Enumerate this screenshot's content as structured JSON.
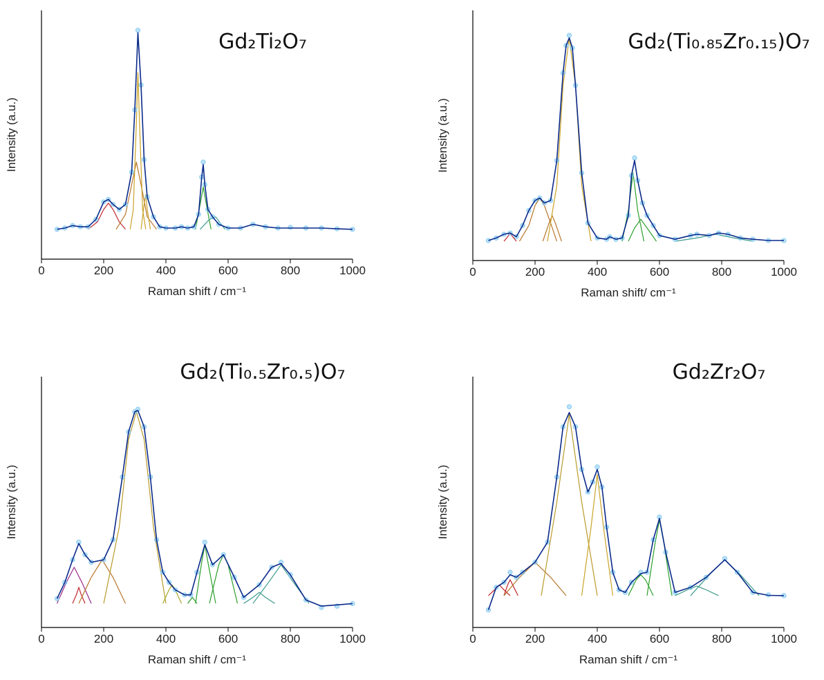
{
  "chart_data": [
    {
      "type": "line",
      "title": "Gd₂Ti₂O₇",
      "xlabel": "Raman shift / cm⁻¹",
      "ylabel": "Intensity (a.u.)",
      "xlim": [
        0,
        1000
      ],
      "xticks": [
        0,
        200,
        400,
        600,
        800,
        1000
      ],
      "ylim": [
        0,
        100
      ],
      "x": [
        50,
        75,
        100,
        125,
        150,
        175,
        200,
        215,
        230,
        250,
        270,
        290,
        300,
        310,
        320,
        330,
        340,
        360,
        380,
        400,
        430,
        450,
        470,
        490,
        505,
        515,
        520,
        525,
        535,
        550,
        570,
        600,
        640,
        680,
        720,
        760,
        800,
        850,
        900,
        950,
        1000
      ],
      "series": [
        {
          "color": "#7fc8f0",
          "style": "markers",
          "values": [
            12,
            12.5,
            13.5,
            13,
            13,
            16,
            23,
            24,
            22,
            20,
            22,
            35,
            60,
            92,
            70,
            40,
            25,
            17,
            13,
            12.5,
            12.5,
            13,
            12.5,
            13,
            18,
            33,
            39,
            30,
            20,
            17,
            14,
            12.5,
            12.5,
            14,
            13,
            12.5,
            12.8,
            12.5,
            12.5,
            12.2,
            12
          ]
        },
        {
          "color": "#0a2a8a",
          "style": "line",
          "values": [
            12,
            12.5,
            13.5,
            13,
            13,
            16,
            23,
            24,
            22,
            20,
            22,
            35,
            60,
            91,
            70,
            40,
            25,
            17,
            13,
            12.5,
            12.5,
            13,
            12.5,
            13,
            18,
            33,
            38,
            30,
            20,
            17,
            14,
            12.5,
            12.5,
            14,
            13,
            12.5,
            12.5,
            12.5,
            12.5,
            12.2,
            12
          ]
        },
        {
          "color": "#c0262d",
          "style": "line",
          "x": [
            150,
            180,
            200,
            215,
            230,
            250,
            270
          ],
          "values": [
            12,
            15,
            20,
            22.5,
            20,
            15,
            12
          ]
        },
        {
          "color": "#b8752a",
          "style": "line",
          "x": [
            240,
            270,
            290,
            305,
            320,
            340,
            370
          ],
          "values": [
            12,
            18,
            30,
            39,
            30,
            17,
            12
          ]
        },
        {
          "color": "#c9a227",
          "style": "line",
          "x": [
            285,
            295,
            305,
            310,
            315,
            325,
            335
          ],
          "values": [
            12,
            20,
            55,
            75,
            55,
            20,
            12
          ]
        },
        {
          "color": "#c9a227",
          "style": "line",
          "x": [
            320,
            330,
            335,
            340,
            350
          ],
          "values": [
            12,
            22,
            26,
            20,
            12
          ]
        },
        {
          "color": "#2ca02c",
          "style": "line",
          "x": [
            495,
            510,
            520,
            530,
            545
          ],
          "values": [
            12,
            22,
            29,
            22,
            12
          ]
        },
        {
          "color": "#3a9a8a",
          "style": "line",
          "x": [
            510,
            540,
            560,
            590
          ],
          "values": [
            12,
            16,
            17,
            12
          ]
        }
      ]
    },
    {
      "type": "line",
      "title": "Gd₂(Ti₀.₈₅Zr₀.₁₅)O₇",
      "xlabel": "Raman shift/ cm⁻¹",
      "ylabel": "Intensity (a.u.)",
      "xlim": [
        0,
        1000
      ],
      "xticks": [
        0,
        200,
        400,
        600,
        800,
        1000
      ],
      "ylim": [
        0,
        100
      ],
      "x": [
        50,
        75,
        100,
        120,
        140,
        160,
        180,
        200,
        215,
        230,
        250,
        270,
        290,
        300,
        310,
        320,
        330,
        350,
        370,
        400,
        430,
        440,
        460,
        480,
        500,
        510,
        520,
        530,
        545,
        560,
        580,
        600,
        650,
        700,
        720,
        760,
        790,
        820,
        860,
        900,
        950,
        1000
      ],
      "series": [
        {
          "color": "#7fc8f0",
          "style": "markers",
          "values": [
            8,
            9,
            10.5,
            11,
            9.5,
            14,
            20,
            24,
            25,
            23,
            24,
            40,
            75,
            86,
            90,
            85,
            70,
            35,
            15,
            9,
            8.5,
            9.5,
            8.5,
            9,
            18,
            34,
            41,
            32,
            23,
            18,
            14,
            10,
            8.5,
            10,
            10.5,
            10,
            11,
            10.5,
            9,
            8.5,
            8,
            8
          ]
        },
        {
          "color": "#0a2a8a",
          "style": "line",
          "values": [
            8,
            9,
            10.5,
            11,
            9.5,
            14,
            20,
            24,
            25,
            23,
            24,
            40,
            75,
            86,
            89,
            85,
            70,
            35,
            15,
            9,
            8.5,
            9.5,
            8.5,
            9,
            18,
            34,
            40,
            32,
            23,
            18,
            14,
            10,
            8.5,
            10,
            10.5,
            10,
            11,
            10.5,
            9,
            8.5,
            8,
            8
          ]
        },
        {
          "color": "#c0262d",
          "style": "line",
          "x": [
            100,
            112,
            120,
            128,
            140
          ],
          "values": [
            7.7,
            9.5,
            11,
            9.5,
            7.7
          ]
        },
        {
          "color": "#b8752a",
          "style": "line",
          "x": [
            150,
            180,
            200,
            215,
            230,
            250,
            270
          ],
          "values": [
            7.7,
            14,
            22,
            25,
            22,
            15,
            7.7
          ]
        },
        {
          "color": "#b8752a",
          "style": "line",
          "x": [
            225,
            245,
            255,
            265,
            285
          ],
          "values": [
            7.7,
            15,
            18,
            15,
            7.7
          ]
        },
        {
          "color": "#c9a227",
          "style": "line",
          "x": [
            240,
            270,
            290,
            310,
            330,
            350,
            380
          ],
          "values": [
            7.7,
            30,
            70,
            89,
            70,
            30,
            7.7
          ]
        },
        {
          "color": "#2ca02c",
          "style": "line",
          "x": [
            480,
            500,
            515,
            530,
            550
          ],
          "values": [
            7.7,
            20,
            35,
            20,
            7.7
          ]
        },
        {
          "color": "#2ca02c",
          "style": "line",
          "x": [
            500,
            520,
            540,
            560,
            590
          ],
          "values": [
            7.7,
            13,
            16.5,
            13,
            7.7
          ]
        },
        {
          "color": "#3a9a8a",
          "style": "line",
          "x": [
            650,
            720,
            780,
            840,
            900
          ],
          "values": [
            7.7,
            9,
            10.5,
            9,
            7.7
          ]
        }
      ]
    },
    {
      "type": "line",
      "title": "Gd₂(Ti₀.₅Zr₀.₅)O₇",
      "xlabel": "Raman shift / cm⁻¹",
      "ylabel": "Intensity (a.u.)",
      "xlim": [
        0,
        1000
      ],
      "xticks": [
        0,
        200,
        400,
        600,
        800,
        1000
      ],
      "ylim": [
        0,
        100
      ],
      "x": [
        50,
        75,
        100,
        120,
        140,
        160,
        200,
        230,
        260,
        280,
        300,
        310,
        330,
        350,
        370,
        390,
        410,
        430,
        460,
        480,
        500,
        525,
        550,
        585,
        620,
        650,
        700,
        740,
        770,
        800,
        850,
        900,
        950,
        1000
      ],
      "series": [
        {
          "color": "#7fc8f0",
          "style": "markers",
          "values": [
            11.5,
            18,
            27,
            34,
            29,
            26,
            27,
            35,
            60,
            78,
            86,
            87,
            80,
            60,
            35,
            22,
            18,
            15,
            13,
            13,
            22,
            34,
            25,
            29,
            20,
            12,
            17,
            24,
            26,
            21,
            11,
            8,
            8.5,
            9.5
          ]
        },
        {
          "color": "#0a2a8a",
          "style": "line",
          "values": [
            11.5,
            18,
            27,
            33.5,
            29,
            26,
            27,
            35,
            60,
            78,
            86,
            86.5,
            80,
            60,
            35,
            22,
            18,
            15,
            13,
            13,
            22,
            33,
            25,
            29,
            20,
            12,
            17,
            24,
            25.5,
            21,
            11,
            8.5,
            9,
            9.5
          ]
        },
        {
          "color": "#9b2a8a",
          "style": "line",
          "x": [
            50,
            80,
            105,
            130,
            160
          ],
          "values": [
            9.6,
            18,
            24,
            18,
            9.6
          ]
        },
        {
          "color": "#c0262d",
          "style": "line",
          "x": [
            100,
            112,
            120,
            128,
            140
          ],
          "values": [
            9.6,
            13,
            16,
            13,
            9.6
          ]
        },
        {
          "color": "#b8752a",
          "style": "line",
          "x": [
            120,
            160,
            195,
            230,
            270
          ],
          "values": [
            9.6,
            20,
            27,
            20,
            9.6
          ]
        },
        {
          "color": "#b89a2a",
          "style": "line",
          "x": [
            200,
            250,
            280,
            305,
            330,
            360,
            400
          ],
          "values": [
            9.6,
            40,
            75,
            86,
            75,
            40,
            9.6
          ]
        },
        {
          "color": "#a8a82a",
          "style": "line",
          "x": [
            390,
            410,
            420,
            430,
            450
          ],
          "values": [
            9.6,
            15,
            17,
            15,
            9.6
          ]
        },
        {
          "color": "#2ca02c",
          "style": "line",
          "x": [
            470,
            485,
            500
          ],
          "values": [
            9.6,
            12,
            9.6
          ]
        },
        {
          "color": "#2ca02c",
          "style": "line",
          "x": [
            495,
            515,
            525,
            535,
            560
          ],
          "values": [
            9.6,
            26,
            33,
            26,
            9.6
          ]
        },
        {
          "color": "#2ca02c",
          "style": "line",
          "x": [
            540,
            570,
            585,
            600,
            630
          ],
          "values": [
            9.6,
            25,
            29,
            25,
            9.6
          ]
        },
        {
          "color": "#3a9a8a",
          "style": "line",
          "x": [
            650,
            680,
            700,
            720,
            750
          ],
          "values": [
            9.6,
            12,
            14,
            12,
            9.6
          ]
        },
        {
          "color": "#3a9a8a",
          "style": "line",
          "x": [
            680,
            730,
            770,
            810,
            860
          ],
          "values": [
            9.6,
            18,
            25,
            18,
            9.6
          ]
        }
      ]
    },
    {
      "type": "line",
      "title": "Gd₂Zr₂O₇",
      "xlabel": "Raman shift / cm⁻¹",
      "ylabel": "Intensity (a.u.)",
      "xlim": [
        0,
        1000
      ],
      "xticks": [
        0,
        200,
        400,
        600,
        800,
        1000
      ],
      "ylim": [
        0,
        100
      ],
      "x": [
        50,
        75,
        100,
        120,
        140,
        160,
        200,
        240,
        270,
        290,
        310,
        330,
        350,
        370,
        385,
        400,
        415,
        430,
        450,
        470,
        490,
        510,
        540,
        560,
        580,
        600,
        620,
        650,
        700,
        750,
        810,
        850,
        900,
        950,
        1000
      ],
      "series": [
        {
          "color": "#7fc8f0",
          "style": "markers",
          "values": [
            7,
            16,
            18,
            22,
            20,
            22,
            26,
            34,
            60,
            80,
            88,
            80,
            63,
            54,
            58,
            64,
            56,
            40,
            22,
            15,
            14,
            18,
            22,
            22,
            35,
            44,
            30,
            14,
            16,
            20,
            27.5,
            22,
            14,
            13,
            12.7
          ]
        },
        {
          "color": "#0a2a8a",
          "style": "line",
          "values": [
            7,
            16,
            18,
            21,
            20,
            22,
            26,
            34,
            60,
            80,
            85.7,
            80,
            63,
            54,
            58,
            63,
            56,
            40,
            22,
            15,
            14,
            18,
            21.5,
            22,
            35,
            43.5,
            30,
            14,
            16,
            20,
            27,
            22,
            14,
            12.8,
            12.7
          ]
        },
        {
          "color": "#c0262d",
          "style": "line",
          "x": [
            50,
            70,
            85,
            100,
            120
          ],
          "values": [
            12.7,
            15,
            17,
            15,
            12.7
          ]
        },
        {
          "color": "#c0262d",
          "style": "line",
          "x": [
            100,
            112,
            120,
            128,
            145
          ],
          "values": [
            12.7,
            17,
            19,
            17,
            12.7
          ]
        },
        {
          "color": "#b8752a",
          "style": "line",
          "x": [
            100,
            150,
            200,
            250,
            300
          ],
          "values": [
            12.7,
            20,
            26,
            20,
            12.7
          ]
        },
        {
          "color": "#b89a2a",
          "style": "line",
          "x": [
            220,
            270,
            310,
            350,
            400
          ],
          "values": [
            12.7,
            50,
            85,
            50,
            12.7
          ]
        },
        {
          "color": "#c9a227",
          "style": "line",
          "x": [
            350,
            380,
            400,
            420,
            450
          ],
          "values": [
            12.7,
            40,
            61,
            40,
            12.7
          ]
        },
        {
          "color": "#2ca02c",
          "style": "line",
          "x": [
            500,
            525,
            540,
            555,
            580
          ],
          "values": [
            12.7,
            19,
            21,
            19,
            12.7
          ]
        },
        {
          "color": "#2ca02c",
          "style": "line",
          "x": [
            560,
            585,
            600,
            615,
            640
          ],
          "values": [
            12.7,
            33,
            43,
            33,
            12.7
          ]
        },
        {
          "color": "#3a9a8a",
          "style": "line",
          "x": [
            650,
            690,
            720,
            750,
            790
          ],
          "values": [
            12.7,
            15,
            16.5,
            15,
            12.7
          ]
        },
        {
          "color": "#3a9a8a",
          "style": "line",
          "x": [
            700,
            760,
            810,
            860,
            920
          ],
          "values": [
            12.7,
            21,
            27,
            21,
            12.7
          ]
        }
      ]
    }
  ]
}
